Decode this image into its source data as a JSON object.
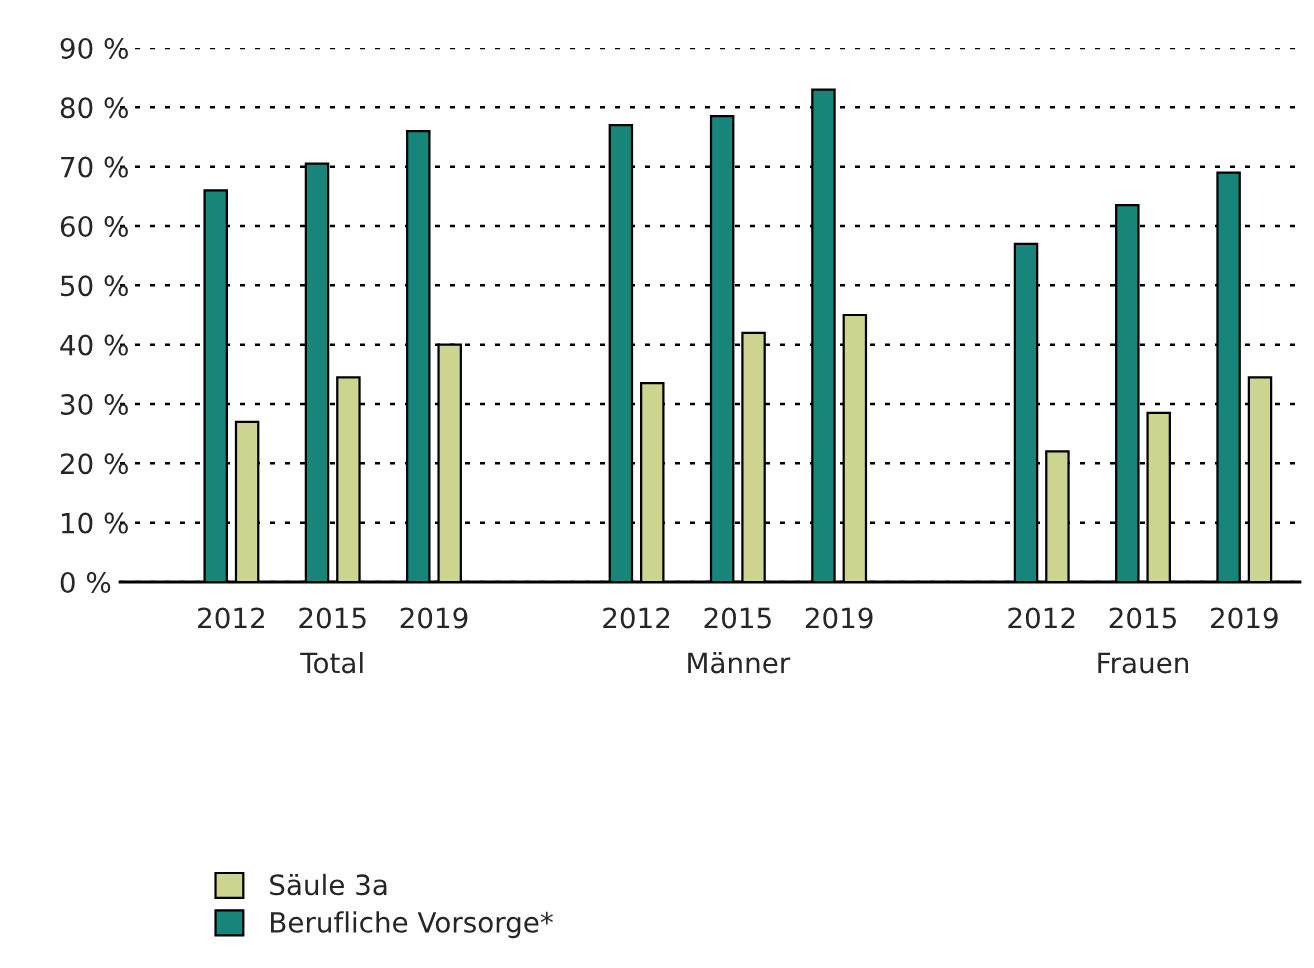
{
  "chart_data": {
    "type": "bar",
    "categories": [
      "2012",
      "2015",
      "2019",
      null,
      "2012",
      "2015",
      "2019",
      null,
      "2012",
      "2015",
      "2019"
    ],
    "series": [
      {
        "name": "Berufliche Vorsorge*",
        "color": "#17857a",
        "values": [
          66,
          70.5,
          76,
          null,
          77,
          78.5,
          83,
          null,
          57,
          63.5,
          69
        ]
      },
      {
        "name": "Säule 3a",
        "color": "#cdd490",
        "values": [
          27,
          34.5,
          40,
          null,
          33.5,
          42,
          45,
          null,
          22,
          28.5,
          34.5
        ]
      }
    ],
    "ylim": [
      0,
      90
    ],
    "yticks": [
      {
        "value": 0,
        "label": "0 %"
      },
      {
        "value": 10,
        "label": "10 %"
      },
      {
        "value": 20,
        "label": "20 %"
      },
      {
        "value": 30,
        "label": "30 %"
      },
      {
        "value": 40,
        "label": "40 %"
      },
      {
        "value": 50,
        "label": "50 %"
      },
      {
        "value": 60,
        "label": "60 %"
      },
      {
        "value": 70,
        "label": "70 %"
      },
      {
        "value": 80,
        "label": "80 %"
      },
      {
        "value": 90,
        "label": "90 %"
      }
    ],
    "grid": "y",
    "legend": "bottom left",
    "annotations": [
      "Total",
      "Männer",
      "Frauen"
    ]
  }
}
